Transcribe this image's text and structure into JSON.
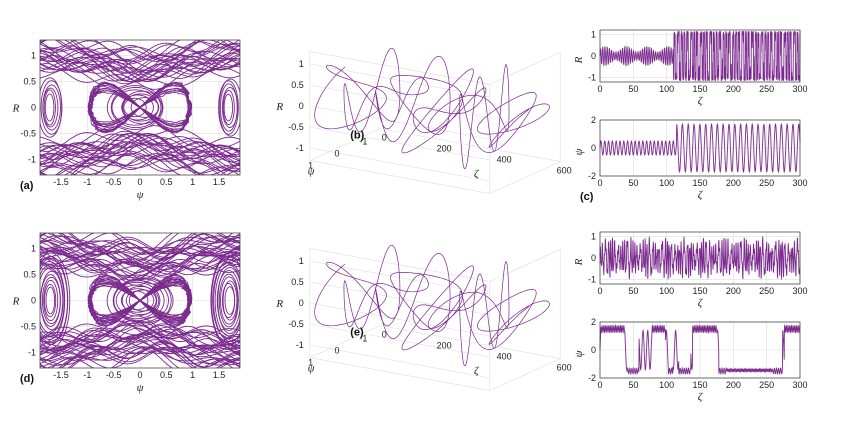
{
  "chart_data": [
    {
      "id": "a",
      "type": "line",
      "panel_label": "(a)",
      "xlabel": "ψ",
      "ylabel": "R",
      "xlim": [
        -1.9,
        1.9
      ],
      "ylim": [
        -1.3,
        1.3
      ],
      "x_ticks": [
        -1.5,
        -1,
        -0.5,
        0,
        0.5,
        1,
        1.5
      ],
      "x_tick_labels": [
        "-1.5",
        "-1",
        "-0.5",
        "0",
        "0.5",
        "1",
        "1.5"
      ],
      "y_ticks": [
        -1,
        -0.5,
        0,
        0.5,
        1
      ],
      "y_tick_labels": [
        "-1",
        "-0.5",
        "0",
        "0.5",
        "1"
      ],
      "series": [
        {
          "name": "phase-portrait",
          "color": "#7b2a8e"
        }
      ]
    },
    {
      "id": "b",
      "type": "line",
      "panel_label": "(b)",
      "xlabel": "ψ",
      "ylabel": "R",
      "zlabel": "ζ",
      "x_ticks": [
        -1,
        0,
        1
      ],
      "x_tick_labels": [
        "-1",
        "0",
        "1"
      ],
      "y_ticks": [
        -1,
        -0.5,
        0,
        0.5,
        1
      ],
      "y_tick_labels": [
        "-1",
        "-0.5",
        "0",
        "0.5",
        "1"
      ],
      "z_ticks": [
        0,
        200,
        400,
        600
      ],
      "z_tick_labels": [
        "0",
        "200",
        "400",
        "600"
      ],
      "series": [
        {
          "name": "trajectory-3d",
          "color": "#7b2a8e"
        }
      ]
    },
    {
      "id": "c1",
      "type": "line",
      "xlabel": "ζ",
      "ylabel": "R",
      "xlim": [
        0,
        300
      ],
      "ylim": [
        -1.2,
        1.2
      ],
      "x_ticks": [
        0,
        50,
        100,
        150,
        200,
        250,
        300
      ],
      "x_tick_labels": [
        "0",
        "50",
        "100",
        "150",
        "200",
        "250",
        "300"
      ],
      "y_ticks": [
        -1,
        0,
        1
      ],
      "y_tick_labels": [
        "-1",
        "0",
        "1"
      ],
      "series": [
        {
          "name": "R(ζ)",
          "color": "#7b2a8e"
        }
      ]
    },
    {
      "id": "c2",
      "type": "line",
      "panel_label": "(c)",
      "xlabel": "ζ",
      "ylabel": "ψ",
      "xlim": [
        0,
        300
      ],
      "ylim": [
        -2,
        2
      ],
      "x_ticks": [
        0,
        50,
        100,
        150,
        200,
        250,
        300
      ],
      "x_tick_labels": [
        "0",
        "50",
        "100",
        "150",
        "200",
        "250",
        "300"
      ],
      "y_ticks": [
        -2,
        0,
        2
      ],
      "y_tick_labels": [
        "-2",
        "0",
        "2"
      ],
      "series": [
        {
          "name": "ψ(ζ)",
          "color": "#7b2a8e"
        }
      ]
    },
    {
      "id": "d",
      "type": "line",
      "panel_label": "(d)",
      "xlabel": "ψ",
      "ylabel": "R",
      "xlim": [
        -1.9,
        1.9
      ],
      "ylim": [
        -1.3,
        1.3
      ],
      "x_ticks": [
        -1.5,
        -1,
        -0.5,
        0,
        0.5,
        1,
        1.5
      ],
      "x_tick_labels": [
        "-1.5",
        "-1",
        "-0.5",
        "0",
        "0.5",
        "1",
        "1.5"
      ],
      "y_ticks": [
        -1,
        -0.5,
        0,
        0.5,
        1
      ],
      "y_tick_labels": [
        "-1",
        "-0.5",
        "0",
        "0.5",
        "1"
      ],
      "series": [
        {
          "name": "phase-portrait",
          "color": "#7b2a8e"
        }
      ]
    },
    {
      "id": "e",
      "type": "line",
      "panel_label": "(e)",
      "xlabel": "ψ",
      "ylabel": "R",
      "zlabel": "ζ",
      "x_ticks": [
        -1,
        0,
        1
      ],
      "x_tick_labels": [
        "-1",
        "0",
        "1"
      ],
      "y_ticks": [
        -1,
        -0.5,
        0,
        0.5,
        1
      ],
      "y_tick_labels": [
        "-1",
        "-0.5",
        "0",
        "0.5",
        "1"
      ],
      "z_ticks": [
        0,
        200,
        400,
        600
      ],
      "z_tick_labels": [
        "0",
        "200",
        "400",
        "600"
      ],
      "series": [
        {
          "name": "trajectory-3d",
          "color": "#7b2a8e"
        }
      ]
    },
    {
      "id": "f1",
      "type": "line",
      "xlabel": "ζ",
      "ylabel": "R",
      "xlim": [
        0,
        300
      ],
      "ylim": [
        -1.2,
        1.2
      ],
      "x_ticks": [
        0,
        50,
        100,
        150,
        200,
        250,
        300
      ],
      "x_tick_labels": [
        "0",
        "50",
        "100",
        "150",
        "200",
        "250",
        "300"
      ],
      "y_ticks": [
        -1,
        0,
        1
      ],
      "y_tick_labels": [
        "-1",
        "0",
        "1"
      ],
      "series": [
        {
          "name": "R(ζ)",
          "color": "#7b2a8e"
        }
      ]
    },
    {
      "id": "f2",
      "type": "line",
      "xlabel": "ζ",
      "ylabel": "ψ",
      "xlim": [
        0,
        300
      ],
      "ylim": [
        -2,
        2
      ],
      "x_ticks": [
        0,
        50,
        100,
        150,
        200,
        250,
        300
      ],
      "x_tick_labels": [
        "0",
        "50",
        "100",
        "150",
        "200",
        "250",
        "300"
      ],
      "y_ticks": [
        -2,
        0,
        2
      ],
      "y_tick_labels": [
        "-2",
        "0",
        "2"
      ],
      "series": [
        {
          "name": "ψ(ζ)",
          "color": "#7b2a8e"
        }
      ]
    }
  ]
}
